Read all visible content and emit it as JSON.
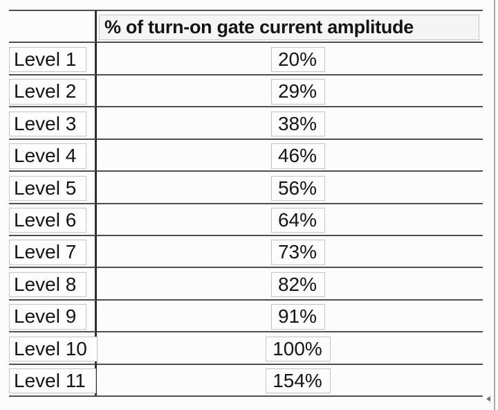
{
  "colors": {
    "background": "#fcfcfc",
    "grid_line": "#4f4f4f",
    "column_divider": "#2f2f2f",
    "chip_border": "#c3c3c3",
    "text": "#141414",
    "right_frame_line": "#a8a8a8",
    "arrow_marker": "#707070"
  },
  "table": {
    "header": {
      "label_col": "",
      "value_col": "% of turn-on gate current amplitude"
    },
    "rows": [
      {
        "label": "Level 1",
        "value": "20%"
      },
      {
        "label": "Level 2",
        "value": "29%"
      },
      {
        "label": "Level 3",
        "value": "38%"
      },
      {
        "label": "Level 4",
        "value": "46%"
      },
      {
        "label": "Level 5",
        "value": "56%"
      },
      {
        "label": "Level 6",
        "value": "64%"
      },
      {
        "label": "Level 7",
        "value": "73%"
      },
      {
        "label": "Level 8",
        "value": "82%"
      },
      {
        "label": "Level 9",
        "value": "91%"
      },
      {
        "label": "Level 10",
        "value": "100%"
      },
      {
        "label": "Level 11",
        "value": "154%"
      }
    ]
  },
  "chart_data": {
    "type": "table",
    "title": "% of turn-on gate current amplitude",
    "columns": [
      "Level",
      "% of turn-on gate current amplitude"
    ],
    "categories": [
      "Level 1",
      "Level 2",
      "Level 3",
      "Level 4",
      "Level 5",
      "Level 6",
      "Level 7",
      "Level 8",
      "Level 9",
      "Level 10",
      "Level 11"
    ],
    "values": [
      20,
      29,
      38,
      46,
      56,
      64,
      73,
      82,
      91,
      100,
      154
    ],
    "unit": "%"
  }
}
